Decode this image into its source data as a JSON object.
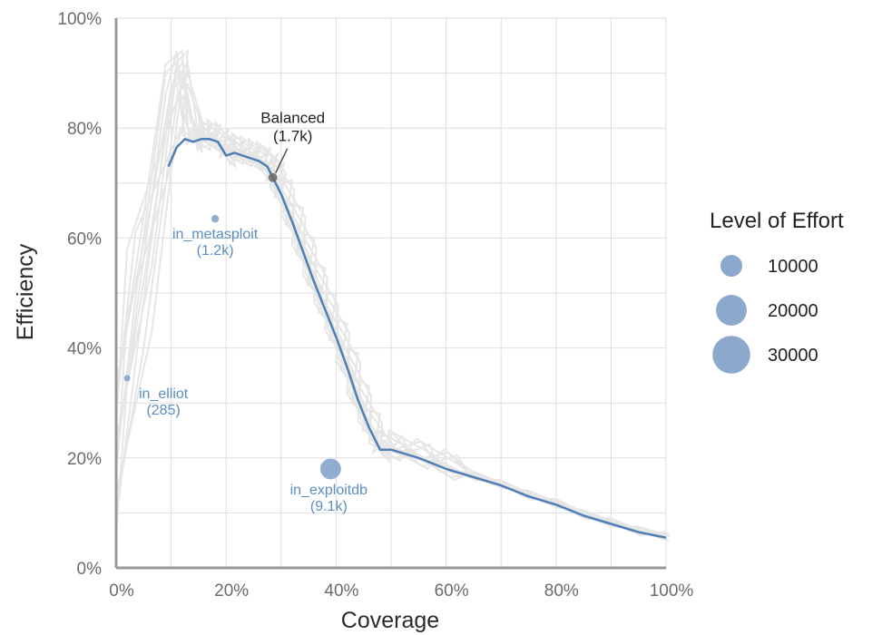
{
  "chart_data": {
    "type": "scatter",
    "title": "",
    "xlabel": "Coverage",
    "ylabel": "Efficiency",
    "xlim": [
      0,
      100
    ],
    "ylim": [
      0,
      100
    ],
    "x_ticks": [
      "0%",
      "20%",
      "40%",
      "60%",
      "80%",
      "100%"
    ],
    "y_ticks": [
      "0%",
      "20%",
      "40%",
      "60%",
      "80%",
      "100%"
    ],
    "grid": true,
    "colors": {
      "highlight": "#4f7fb5",
      "background_lines": "#e6e6e6",
      "points": "#7f9fc8",
      "annotation_text": "#5b8ec0",
      "grid": "#dedede",
      "axis": "#999999"
    },
    "series": [
      {
        "x": [
          9.5,
          11,
          12.5,
          14,
          15.5,
          17,
          18.5,
          20,
          21.5,
          23,
          24.5,
          26,
          27.5,
          28.5,
          30,
          32,
          34,
          36,
          38,
          40,
          42,
          44,
          46,
          48,
          50,
          55,
          60,
          65,
          70,
          75,
          80,
          85,
          90,
          95,
          100
        ],
        "y": [
          73,
          76.5,
          78,
          77.5,
          78,
          78,
          77.5,
          75,
          75.5,
          75,
          74.5,
          74,
          73,
          71,
          68,
          63,
          57.5,
          52,
          47,
          42,
          36.5,
          30.5,
          25.5,
          21.5,
          21.5,
          20,
          18,
          16.5,
          15,
          13,
          11.5,
          9.5,
          8,
          6.5,
          5.5
        ]
      }
    ],
    "points": [
      {
        "label": "in_metasploit",
        "count": "(1.2k)",
        "x": 18,
        "y": 63.5,
        "effort": 1200
      },
      {
        "label": "in_elliot",
        "count": "(285)",
        "x": 2,
        "y": 34.5,
        "effort": 285
      },
      {
        "label": "in_exploitdb",
        "count": "(9.1k)",
        "x": 39,
        "y": 18,
        "effort": 9100
      },
      {
        "label": "Balanced",
        "count": "(1.7k)",
        "x": 28.5,
        "y": 71,
        "effort": 1700
      }
    ],
    "legend": {
      "title": "Level of Effort",
      "position": "right",
      "entries": [
        {
          "label": "10000",
          "value": 10000
        },
        {
          "label": "20000",
          "value": 20000
        },
        {
          "label": "30000",
          "value": 30000
        }
      ]
    }
  }
}
